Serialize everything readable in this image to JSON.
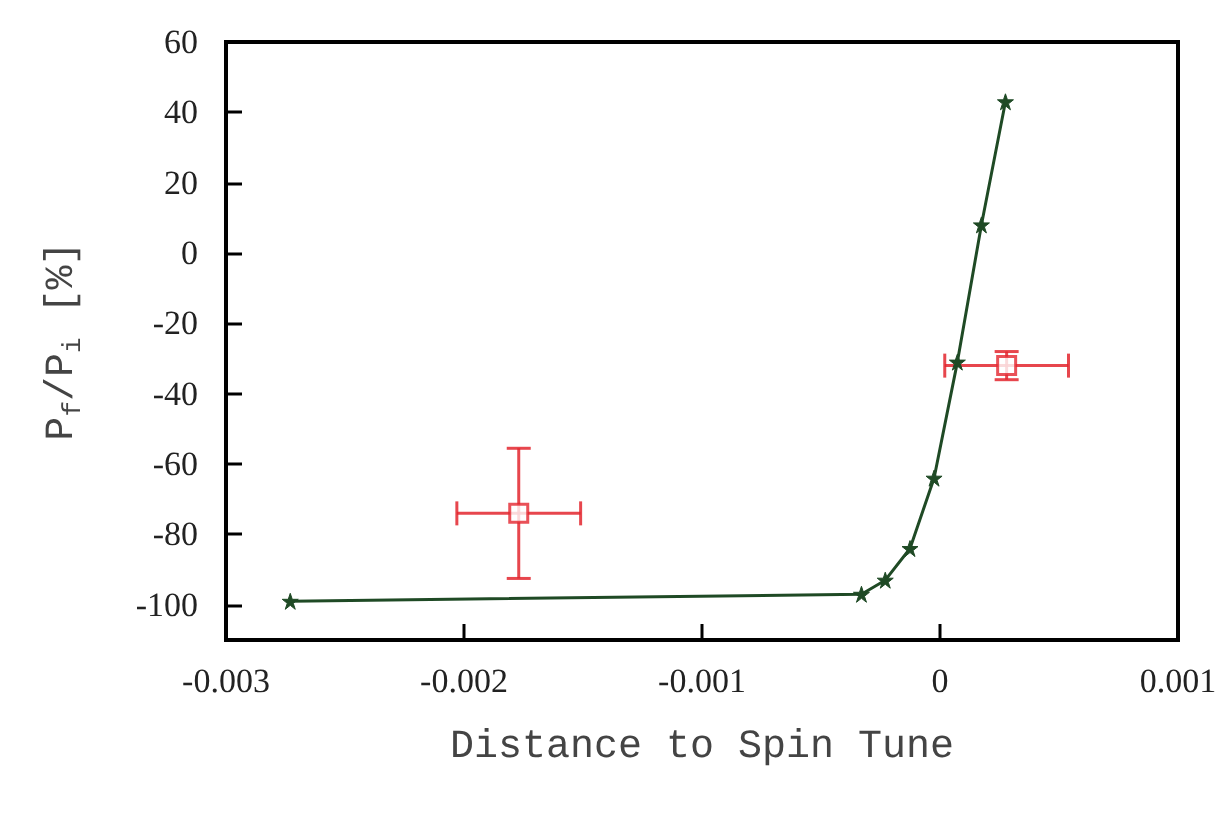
{
  "chart_data": {
    "type": "line",
    "xlabel": "Distance to Spin Tune",
    "ylabel": "P$_{f}$/P$_{i}$ [%]",
    "xlim": [
      -0.003,
      0.001
    ],
    "xticks": [
      -0.003,
      -0.002,
      -0.001,
      0,
      0.001
    ],
    "ylim": [
      -110,
      60
    ],
    "yticks": [
      -100,
      -80,
      -60,
      -40,
      -20,
      0,
      20,
      40,
      60
    ],
    "grid": false,
    "series": [
      {
        "color": "#1f4a25",
        "marker": "star",
        "x": [
          -0.00273,
          -0.00033,
          -0.00023,
          -0.000126,
          -2.5e-05,
          7.3e-05,
          0.000174,
          0.000275
        ],
        "values": [
          -99,
          -97,
          -93,
          -84,
          -64,
          -31,
          8,
          43
        ]
      },
      {
        "type": "scatter",
        "color": "#e3262e",
        "marker": "square",
        "x": [
          -0.00177,
          0.00028
        ],
        "values": [
          -74,
          -32
        ],
        "errors": [
          18.5,
          4
        ],
        "xerrors": [
          0.00026,
          0.00026
        ]
      }
    ]
  }
}
